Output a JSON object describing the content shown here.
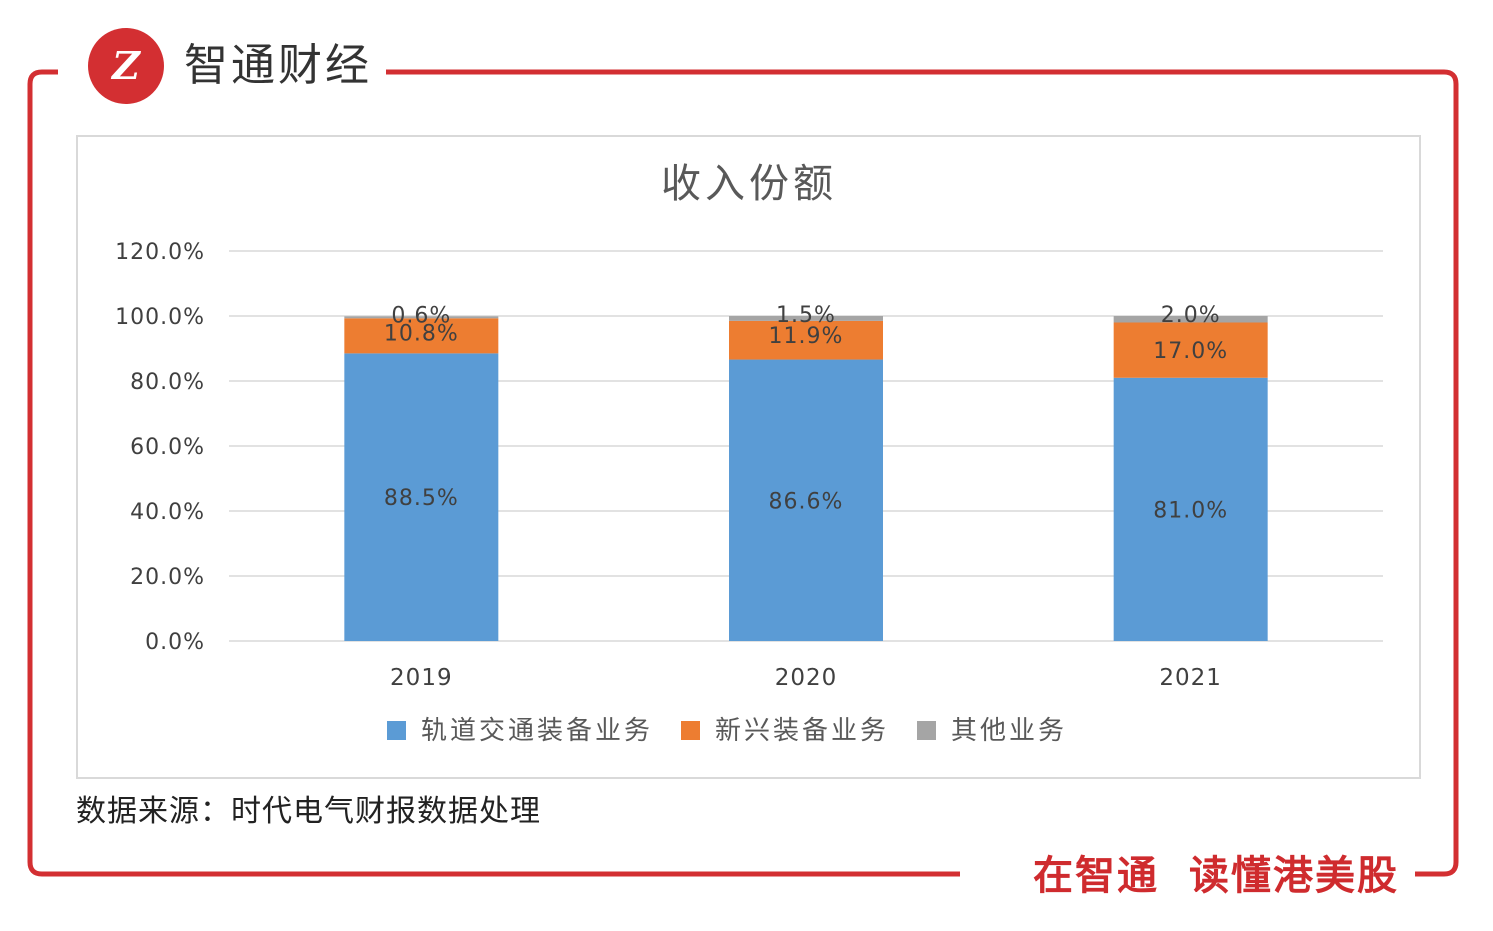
{
  "brand": {
    "name": "智通财经",
    "slogan_part1": "在智通",
    "slogan_part2": "读懂港美股"
  },
  "colors": {
    "brand_red": "#d32f32",
    "series_rail": "#5b9bd5",
    "series_new": "#ed7d31",
    "series_other": "#a5a5a5"
  },
  "source_note": "数据来源：时代电气财报数据处理",
  "chart_data": {
    "type": "bar",
    "stacked": true,
    "title": "收入份额",
    "categories": [
      "2019",
      "2020",
      "2021"
    ],
    "series": [
      {
        "name": "轨道交通装备业务",
        "values": [
          88.5,
          86.6,
          81.0
        ],
        "labels": [
          "88.5%",
          "86.6%",
          "81.0%"
        ],
        "color": "#5b9bd5"
      },
      {
        "name": "新兴装备业务",
        "values": [
          10.8,
          11.9,
          17.0
        ],
        "labels": [
          "10.8%",
          "11.9%",
          "17.0%"
        ],
        "color": "#ed7d31"
      },
      {
        "name": "其他业务",
        "values": [
          0.6,
          1.5,
          2.0
        ],
        "labels": [
          "0.6%",
          "1.5%",
          "2.0%"
        ],
        "color": "#a5a5a5"
      }
    ],
    "ylim": [
      0,
      120
    ],
    "yticks": [
      "0.0%",
      "20.0%",
      "40.0%",
      "60.0%",
      "80.0%",
      "100.0%",
      "120.0%"
    ],
    "grid": true,
    "legend_position": "bottom"
  }
}
